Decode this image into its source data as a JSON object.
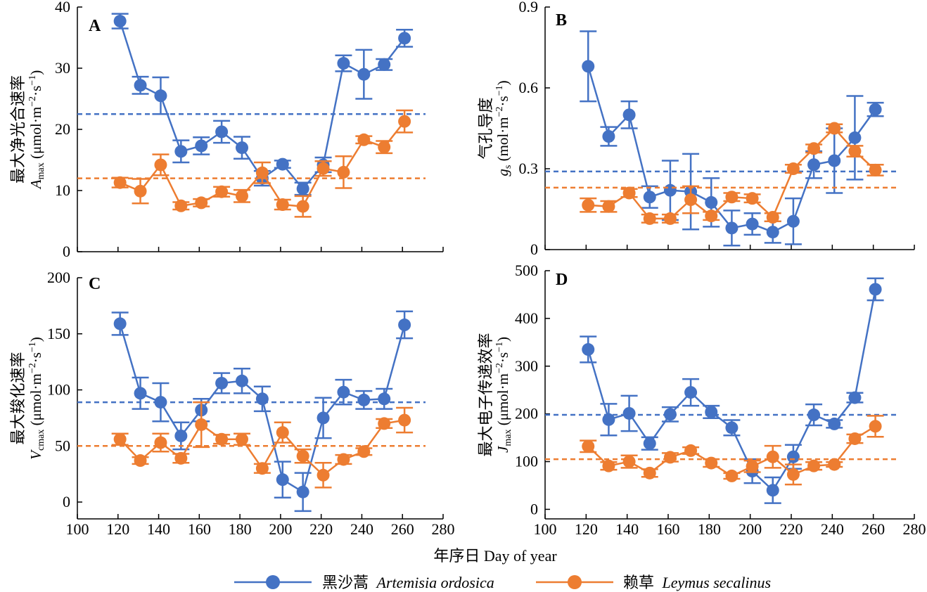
{
  "chart_data": [
    {
      "type": "line",
      "panel": "A",
      "ylabel_cn": "最大净光合速率",
      "ylabel_symbol": "A",
      "ylabel_sub": "max",
      "ylabel_unit_open": "(μmol·m",
      "ylabel_unit_mid": "·s",
      "ylabel_unit_close": ")",
      "ylabel_exp": "−2",
      "ylabel_exp2": "−1",
      "xlim": [
        100,
        280
      ],
      "ylim": [
        0,
        40
      ],
      "x_ticks": [
        100,
        120,
        140,
        160,
        180,
        200,
        220,
        240,
        260,
        280
      ],
      "x_tick_labels": [],
      "y_ticks": [
        0,
        10,
        20,
        30,
        40
      ],
      "y_tick_labels": [
        "0",
        "10",
        "20",
        "30",
        "40"
      ],
      "x": [
        121,
        131,
        141,
        151,
        161,
        171,
        181,
        191,
        201,
        211,
        221,
        231,
        241,
        251,
        261
      ],
      "series": [
        {
          "name": "黑沙蒿 Artemisia ordosica",
          "color": "#4472C4",
          "values": [
            37.7,
            27.2,
            25.5,
            16.4,
            17.3,
            19.6,
            17.0,
            12.0,
            14.3,
            10.3,
            14.2,
            30.8,
            29.0,
            30.6,
            34.9
          ],
          "errors": [
            1.2,
            1.4,
            3.0,
            1.8,
            1.4,
            1.8,
            1.8,
            1.2,
            0.6,
            1.0,
            1.2,
            1.3,
            4.0,
            0.9,
            1.4
          ],
          "mean": 22.5
        },
        {
          "name": "赖草 Leymus secalinus",
          "color": "#ED7D31",
          "values": [
            11.3,
            9.9,
            14.2,
            7.5,
            8.0,
            9.8,
            9.1,
            12.9,
            7.7,
            7.4,
            13.6,
            13.0,
            18.3,
            17.1,
            21.3
          ],
          "errors": [
            0.8,
            2.0,
            1.7,
            0.6,
            0.6,
            0.8,
            1.0,
            1.7,
            0.8,
            1.7,
            1.2,
            2.6,
            0.6,
            1.0,
            1.8
          ],
          "mean": 12.0
        }
      ]
    },
    {
      "type": "line",
      "panel": "B",
      "ylabel_cn": "气孔导度",
      "ylabel_symbol": "g",
      "ylabel_sub": "s",
      "ylabel_unit_open": "(mol·m",
      "ylabel_unit_mid": "·s",
      "ylabel_unit_close": ")",
      "ylabel_exp": "−2",
      "ylabel_exp2": "−1",
      "xlim": [
        100,
        280
      ],
      "ylim": [
        0,
        0.9
      ],
      "x_ticks": [
        100,
        120,
        140,
        160,
        180,
        200,
        220,
        240,
        260,
        280
      ],
      "x_tick_labels": [],
      "y_ticks": [
        0,
        0.3,
        0.6,
        0.9
      ],
      "y_tick_labels": [
        "0",
        "0.3",
        "0.6",
        "0.9"
      ],
      "x": [
        121,
        131,
        141,
        151,
        161,
        171,
        181,
        191,
        201,
        211,
        221,
        231,
        241,
        251,
        261
      ],
      "series": [
        {
          "name": "黑沙蒿 Artemisia ordosica",
          "color": "#4472C4",
          "values": [
            0.68,
            0.42,
            0.5,
            0.195,
            0.22,
            0.215,
            0.175,
            0.08,
            0.095,
            0.065,
            0.105,
            0.315,
            0.33,
            0.415,
            0.52
          ],
          "errors": [
            0.13,
            0.035,
            0.05,
            0.04,
            0.11,
            0.14,
            0.09,
            0.065,
            0.04,
            0.04,
            0.085,
            0.05,
            0.12,
            0.155,
            0.025
          ],
          "mean": 0.29
        },
        {
          "name": "赖草 Leymus secalinus",
          "color": "#ED7D31",
          "values": [
            0.165,
            0.16,
            0.21,
            0.115,
            0.115,
            0.185,
            0.125,
            0.195,
            0.19,
            0.12,
            0.3,
            0.375,
            0.45,
            0.365,
            0.295
          ],
          "errors": [
            0.025,
            0.02,
            0.015,
            0.015,
            0.015,
            0.05,
            0.015,
            0.015,
            0.015,
            0.015,
            0.015,
            0.015,
            0.015,
            0.02,
            0.02
          ],
          "mean": 0.23
        }
      ]
    },
    {
      "type": "line",
      "panel": "C",
      "ylabel_cn": "最大羧化速率",
      "ylabel_symbol": "V",
      "ylabel_sub": "cmax",
      "ylabel_unit_open": "(μmol·m",
      "ylabel_unit_mid": "·s",
      "ylabel_unit_close": ")",
      "ylabel_exp": "−2",
      "ylabel_exp2": "−1",
      "xlim": [
        100,
        280
      ],
      "ylim": [
        -15,
        200
      ],
      "x_ticks": [
        100,
        120,
        140,
        160,
        180,
        200,
        220,
        240,
        260,
        280
      ],
      "x_tick_labels": [
        "100",
        "120",
        "140",
        "160",
        "180",
        "200",
        "220",
        "240",
        "260",
        "280"
      ],
      "y_ticks": [
        0,
        50,
        100,
        150,
        200
      ],
      "y_tick_labels": [
        "0",
        "50",
        "100",
        "150",
        "200"
      ],
      "x": [
        121,
        131,
        141,
        151,
        161,
        171,
        181,
        191,
        201,
        211,
        221,
        231,
        241,
        251,
        261
      ],
      "series": [
        {
          "name": "黑沙蒿 Artemisia ordosica",
          "color": "#4472C4",
          "values": [
            159,
            97,
            89,
            59,
            82,
            106,
            108,
            92,
            20,
            9,
            75,
            98,
            91,
            92,
            158
          ],
          "errors": [
            10,
            14,
            17,
            12,
            10,
            9,
            11,
            11,
            16,
            17,
            18,
            11,
            8,
            9,
            12
          ],
          "mean": 89
        },
        {
          "name": "赖草 Leymus secalinus",
          "color": "#ED7D31",
          "values": [
            56,
            37,
            53,
            39,
            69,
            56,
            56,
            30,
            62,
            41,
            24,
            38,
            45,
            70,
            73
          ],
          "errors": [
            5,
            3,
            8,
            4,
            20,
            4,
            5,
            4,
            9,
            6,
            11,
            4,
            3,
            4,
            11
          ],
          "mean": 50
        }
      ]
    },
    {
      "type": "line",
      "panel": "D",
      "ylabel_cn": "最大电子传递效率",
      "ylabel_symbol": "J",
      "ylabel_sub": "max",
      "ylabel_unit_open": "(μmol·m",
      "ylabel_unit_mid": "·s",
      "ylabel_unit_close": ")",
      "ylabel_exp": "−2",
      "ylabel_exp2": "−1",
      "xlim": [
        100,
        280
      ],
      "ylim": [
        -20,
        500
      ],
      "x_ticks": [
        100,
        120,
        140,
        160,
        180,
        200,
        220,
        240,
        260,
        280
      ],
      "x_tick_labels": [
        "100",
        "120",
        "140",
        "160",
        "180",
        "200",
        "220",
        "240",
        "260",
        "280"
      ],
      "y_ticks": [
        0,
        100,
        200,
        300,
        400,
        500
      ],
      "y_tick_labels": [
        "0",
        "100",
        "200",
        "300",
        "400",
        "500"
      ],
      "x": [
        121,
        131,
        141,
        151,
        161,
        171,
        181,
        191,
        201,
        211,
        221,
        231,
        241,
        251,
        261
      ],
      "series": [
        {
          "name": "黑沙蒿 Artemisia ordosica",
          "color": "#4472C4",
          "values": [
            335,
            188,
            201,
            138,
            199,
            245,
            204,
            171,
            80,
            40,
            110,
            198,
            179,
            234,
            461
          ],
          "errors": [
            27,
            33,
            37,
            13,
            15,
            28,
            13,
            16,
            25,
            27,
            25,
            22,
            8,
            10,
            23
          ],
          "mean": 198
        },
        {
          "name": "赖草 Leymus secalinus",
          "color": "#ED7D31",
          "values": [
            132,
            91,
            100,
            76,
            109,
            123,
            97,
            70,
            90,
            110,
            73,
            91,
            94,
            148,
            174
          ],
          "errors": [
            12,
            8,
            13,
            8,
            9,
            7,
            8,
            6,
            12,
            23,
            21,
            8,
            5,
            9,
            22
          ],
          "mean": 105
        }
      ]
    }
  ],
  "xlabel": "年序日 Day of year",
  "legend": [
    {
      "label": "黑沙蒿 Artemisia ordosica",
      "cn": "黑沙蒿",
      "latin": "Artemisia ordosica",
      "color": "#4472C4"
    },
    {
      "label": "赖草 Leymus secalinus",
      "cn": "赖草",
      "latin": "Leymus secalinus",
      "color": "#ED7D31"
    }
  ]
}
